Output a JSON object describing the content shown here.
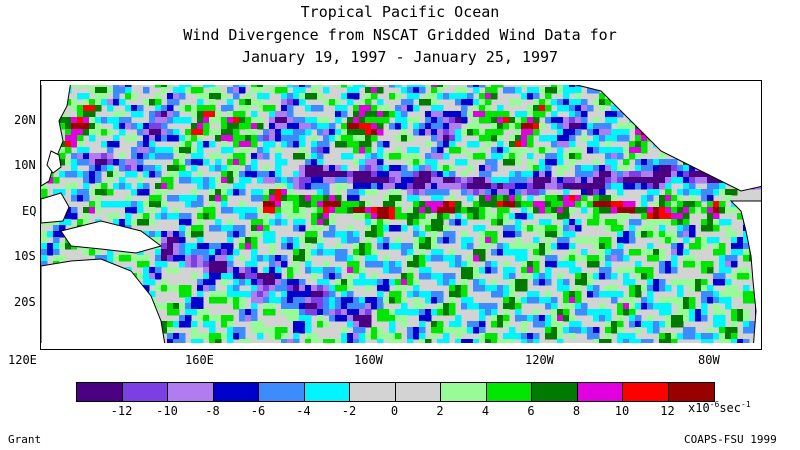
{
  "title": {
    "line1": "Tropical Pacific Ocean",
    "line2": "Wind Divergence from NSCAT Gridded Wind Data for",
    "line3": "January 19, 1997 - January 25, 1997"
  },
  "map": {
    "lat_labels": [
      "20N",
      "10N",
      "EQ",
      "10S",
      "20S"
    ],
    "lon_labels": [
      "120E",
      "160E",
      "160W",
      "120W",
      "80W"
    ],
    "land_color": "#ffffff",
    "coast_color": "#000000"
  },
  "colorbar": {
    "colors": [
      "#4b0082",
      "#7b3fe4",
      "#b07cf0",
      "#0000cd",
      "#3d8bfd",
      "#00f5ff",
      "#d3d3d3",
      "#d3d3d3",
      "#98fb98",
      "#00e600",
      "#007a00",
      "#e000e0",
      "#ff0000",
      "#990000"
    ],
    "tick_labels": [
      "-12",
      "-10",
      "-8",
      "-6",
      "-4",
      "-2",
      "0",
      "2",
      "4",
      "6",
      "8",
      "10",
      "12"
    ],
    "units": "x10-6sec-1"
  },
  "footer": {
    "left": "Grant",
    "right": "COAPS-FSU 1999"
  }
}
